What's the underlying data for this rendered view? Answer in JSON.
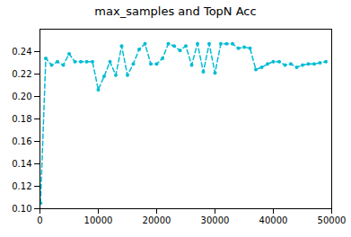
{
  "chart_data": {
    "type": "line",
    "title": "max_samples and TopN Acc",
    "x": [
      100,
      1000,
      2000,
      3000,
      4000,
      5000,
      6000,
      7000,
      8000,
      9000,
      10000,
      11000,
      12000,
      13000,
      14000,
      15000,
      16000,
      17000,
      18000,
      19000,
      20000,
      21000,
      22000,
      23000,
      24000,
      25000,
      26000,
      27000,
      28000,
      29000,
      30000,
      31000,
      32000,
      33000,
      34000,
      35000,
      36000,
      37000,
      38000,
      39000,
      40000,
      41000,
      42000,
      43000,
      44000,
      45000,
      46000,
      47000,
      48000,
      49000
    ],
    "values": [
      0.105,
      0.234,
      0.228,
      0.231,
      0.228,
      0.238,
      0.231,
      0.231,
      0.231,
      0.231,
      0.206,
      0.218,
      0.231,
      0.219,
      0.245,
      0.219,
      0.229,
      0.242,
      0.247,
      0.229,
      0.229,
      0.234,
      0.247,
      0.245,
      0.241,
      0.245,
      0.228,
      0.247,
      0.222,
      0.247,
      0.221,
      0.247,
      0.247,
      0.247,
      0.243,
      0.244,
      0.243,
      0.224,
      0.226,
      0.229,
      0.231,
      0.231,
      0.228,
      0.229,
      0.226,
      0.228,
      0.229,
      0.229,
      0.23,
      0.231
    ],
    "color": "#00bcd4",
    "line_style": "dashed",
    "marker": "o",
    "xlim": [
      0,
      50000
    ],
    "xticks": [
      0,
      10000,
      20000,
      30000,
      40000,
      50000
    ],
    "ylim": [
      0.1,
      0.26
    ],
    "yticks": [
      {
        "value": 0.1,
        "label": "0.10"
      },
      0.12,
      0.14,
      0.16,
      0.18,
      {
        "value": 0.2,
        "label": "0.20"
      },
      0.22,
      0.24
    ],
    "grid": false
  }
}
